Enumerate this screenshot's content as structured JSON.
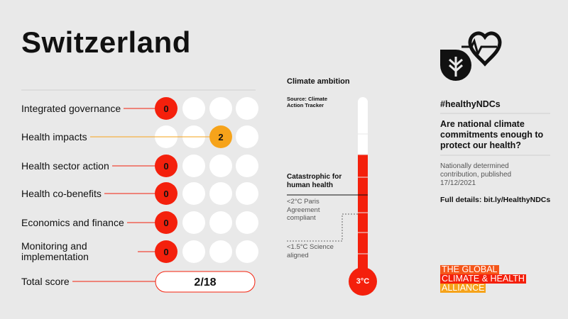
{
  "title": "Switzerland",
  "rows": [
    {
      "label": "Integrated governance",
      "score": 0,
      "color": "#f4200c"
    },
    {
      "label": "Health impacts",
      "score": 2,
      "color": "#f6a31a"
    },
    {
      "label": "Health sector action",
      "score": 0,
      "color": "#f4200c"
    },
    {
      "label": "Health co-benefits",
      "score": 0,
      "color": "#f4200c"
    },
    {
      "label": "Economics and finance",
      "score": 0,
      "color": "#f4200c"
    },
    {
      "label": "Monitoring and implementation",
      "score": 0,
      "color": "#f4200c"
    }
  ],
  "total": {
    "label": "Total score",
    "value": "2/18"
  },
  "thermometer": {
    "heading": "Climate ambition",
    "source": "Source: Climate Action Tracker",
    "catastrophic": "Catastrophic for human health",
    "paris": "<2°C Paris Agreement compliant",
    "science": "<1.5°C Science aligned",
    "reading": "3°C"
  },
  "sidebar": {
    "hashtag": "#healthyNDCs",
    "question": "Are national climate commitments enough to protect our health?",
    "note": "Nationally determined contribution, published 17/12/2021",
    "details": "Full details: bit.ly/HealthyNDCs"
  },
  "logo": [
    "THE GLOBAL",
    "CLIMATE & HEALTH",
    "ALLIANCE"
  ]
}
